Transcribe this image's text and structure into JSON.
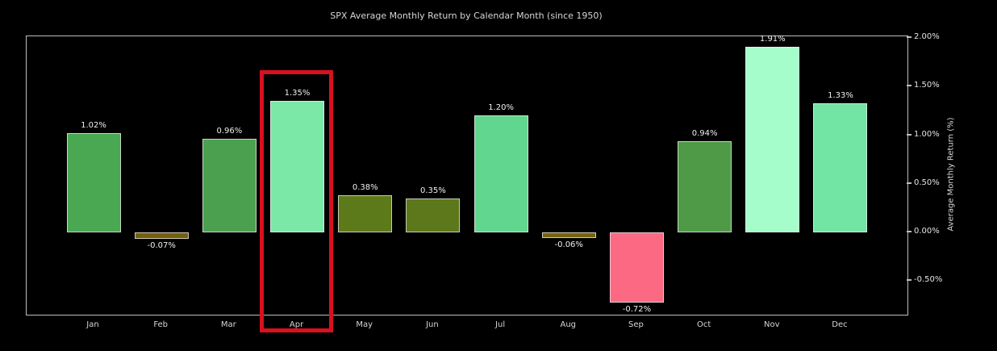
{
  "title": "SPX Average Monthly Return by Calendar Month (since 1950)",
  "chart_data": {
    "type": "bar",
    "title": "SPX Average Monthly Return by Calendar Month (since 1950)",
    "categories": [
      "Jan",
      "Feb",
      "Mar",
      "Apr",
      "May",
      "Jun",
      "Jul",
      "Aug",
      "Sep",
      "Oct",
      "Nov",
      "Dec"
    ],
    "values": [
      1.02,
      -0.07,
      0.96,
      1.35,
      0.38,
      0.35,
      1.2,
      -0.06,
      -0.72,
      0.94,
      1.91,
      1.33
    ],
    "value_labels": [
      "1.02%",
      "-0.07%",
      "0.96%",
      "1.35%",
      "0.38%",
      "0.35%",
      "1.20%",
      "-0.06%",
      "-0.72%",
      "0.94%",
      "1.91%",
      "1.33%"
    ],
    "bar_colors": [
      "#4aa853",
      "#73600f",
      "#4ba04f",
      "#7ce8a8",
      "#5d7a1b",
      "#5c781a",
      "#61d68e",
      "#77630e",
      "#fc6982",
      "#4e9a47",
      "#a4fdca",
      "#72e5a4"
    ],
    "xlabel": "",
    "ylabel": "Average Monthly Return (%)",
    "y_ticks": [
      {
        "label": "2.00%",
        "value": 2.0
      },
      {
        "label": "1.50%",
        "value": 1.5
      },
      {
        "label": "1.00%",
        "value": 1.0
      },
      {
        "label": "0.50%",
        "value": 0.5
      },
      {
        "label": "0.00%",
        "value": 0.0
      },
      {
        "label": "-0.50%",
        "value": -0.5
      }
    ],
    "ylim": [
      -0.85,
      2.02
    ],
    "grid": false,
    "legend": false,
    "plot_background": "#000000",
    "figure_background": "#000000"
  },
  "annotation": {
    "type": "highlight-box",
    "target_month": "Apr",
    "color": "#d8101f"
  },
  "colors": {
    "background": "#000000",
    "title_text": "#d6d6d6",
    "tick_text": "#e3e3e3",
    "value_label_text": "#f0f0f0",
    "spine": "#bdbdbd",
    "bar_edge": "rgba(235,235,235,0.75)"
  }
}
